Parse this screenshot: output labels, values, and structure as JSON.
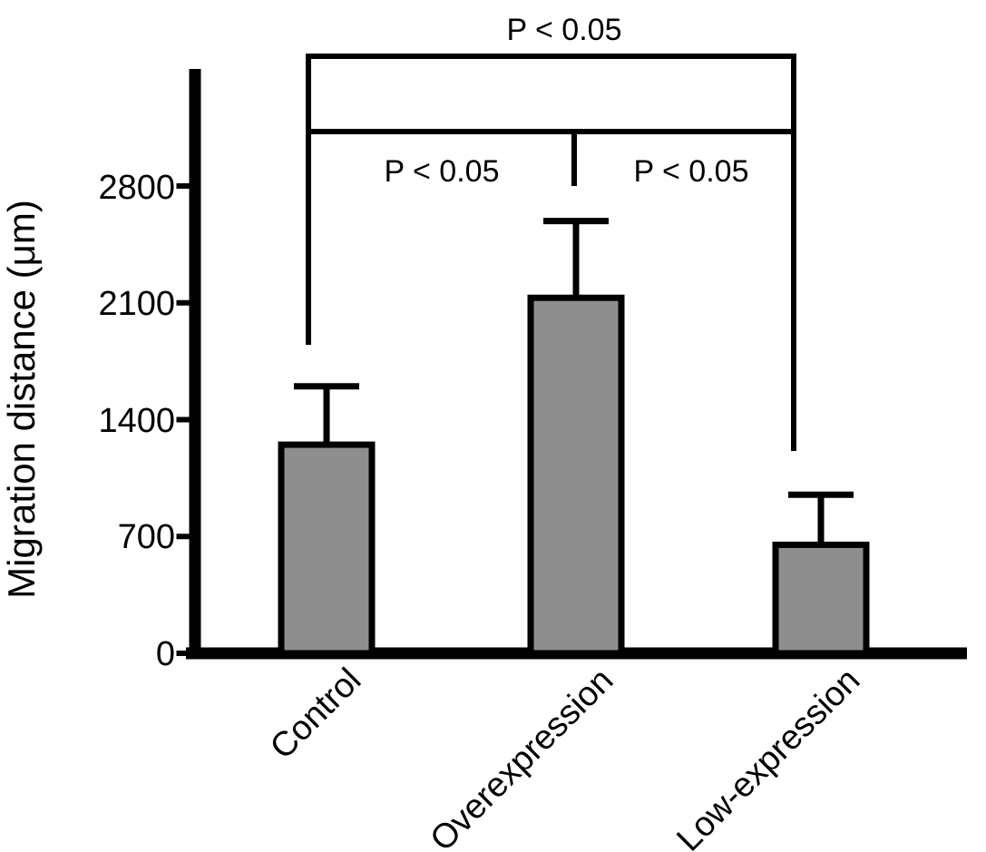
{
  "figure": {
    "background_color": "#ffffff",
    "text_color": "#000000"
  },
  "chart_data": {
    "type": "bar",
    "title": "",
    "xlabel": "",
    "ylabel": "Migration distance (μm)",
    "categories": [
      "Control",
      "Overexpression",
      "Low-expression"
    ],
    "values": [
      1250,
      2130,
      650
    ],
    "errors_plus": [
      350,
      460,
      300
    ],
    "yticks": [
      0,
      700,
      1400,
      2100,
      2800
    ],
    "ylim": [
      0,
      3500
    ],
    "grid": false,
    "legend_position": "none",
    "bar_color": "#8e8e8e",
    "bar_border_color": "#000000",
    "axis_color": "#000000",
    "significance": [
      {
        "label": "P < 0.05",
        "groups": [
          "Control",
          "Low-expression"
        ],
        "position": "top"
      },
      {
        "label": "P < 0.05",
        "groups": [
          "Control",
          "Overexpression"
        ],
        "position": "inner-left"
      },
      {
        "label": "P < 0.05",
        "groups": [
          "Overexpression",
          "Low-expression"
        ],
        "position": "inner-right"
      }
    ]
  }
}
